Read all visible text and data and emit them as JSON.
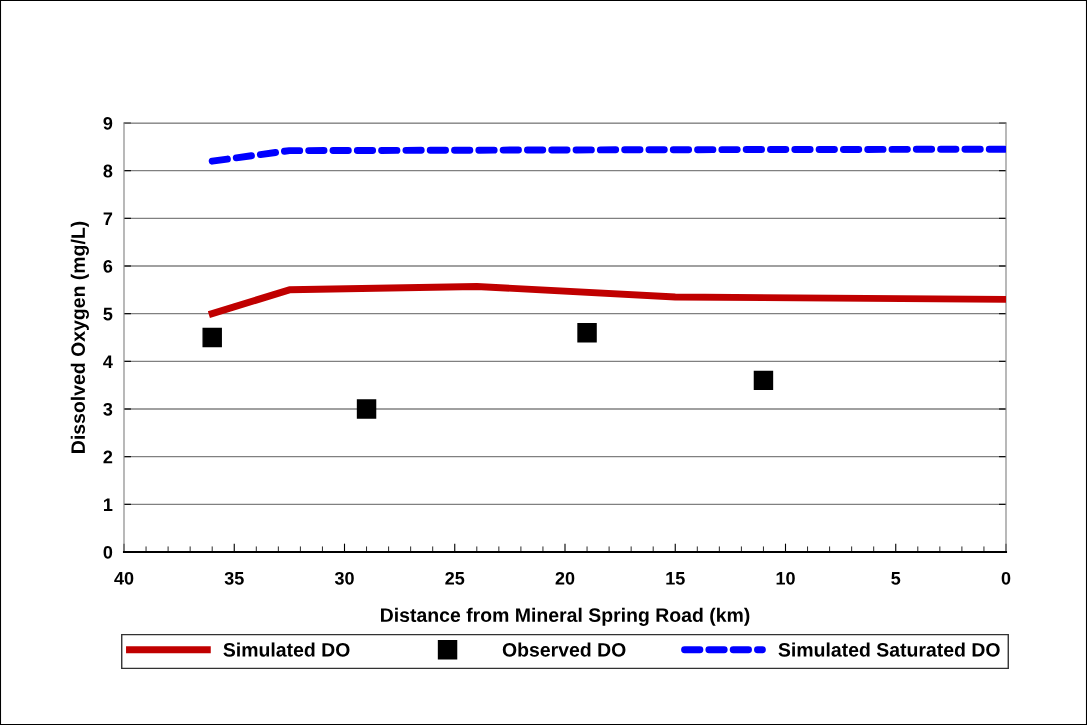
{
  "chart_data": {
    "type": "line",
    "xlabel": "Distance from Mineral Spring Road (km)",
    "ylabel": "Dissolved Oxygen (mg/L)",
    "xlim": [
      40,
      0
    ],
    "xticks": [
      40,
      35,
      30,
      25,
      20,
      15,
      10,
      5,
      0
    ],
    "ylim": [
      0,
      9
    ],
    "yticks": [
      0,
      1,
      2,
      3,
      4,
      5,
      6,
      7,
      8,
      9
    ],
    "grid": "y",
    "legend": "bottom",
    "series": [
      {
        "name": "Simulated DO",
        "color": "#c00000",
        "line_style": "solid",
        "marker": "none",
        "x": [
          36,
          32.5,
          24,
          15,
          0
        ],
        "values": [
          5.0,
          5.5,
          5.57,
          5.35,
          5.3
        ]
      },
      {
        "name": "Observed DO",
        "type": "scatter",
        "color": "#000000",
        "marker": "square",
        "x": [
          36,
          29,
          19,
          11
        ],
        "values": [
          4.5,
          3.0,
          4.6,
          3.6
        ]
      },
      {
        "name": "Simulated Saturated DO",
        "color": "#0000ff",
        "line_style": "dashed",
        "marker": "none",
        "x": [
          36,
          32.5,
          24,
          15,
          0
        ],
        "values": [
          8.2,
          8.42,
          8.43,
          8.44,
          8.45
        ]
      }
    ]
  }
}
